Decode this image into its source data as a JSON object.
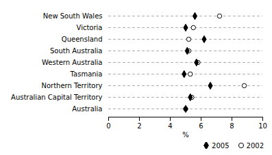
{
  "chart_data": {
    "type": "dot",
    "orientation": "horizontal",
    "xlabel": "%",
    "categories": [
      "New South Wales",
      "Victoria",
      "Queensland",
      "South Australia",
      "Western Australia",
      "Tasmania",
      "Northern Territory",
      "Australian Capital Territory",
      "Australia"
    ],
    "series": [
      {
        "name": "2005",
        "color": "#000000",
        "marker": "diamond",
        "values": [
          5.6,
          5.0,
          6.2,
          5.1,
          5.7,
          4.9,
          6.6,
          5.3,
          5.0
        ]
      },
      {
        "name": "2002",
        "color": "#000000",
        "marker": "circle-open",
        "values": [
          7.2,
          5.5,
          5.2,
          5.2,
          5.8,
          5.3,
          8.8,
          5.4,
          5.0
        ]
      }
    ],
    "xlim": [
      0,
      10
    ],
    "xticks": [
      0,
      2,
      4,
      6,
      8,
      10
    ],
    "grid": true,
    "legend": "lower right"
  }
}
